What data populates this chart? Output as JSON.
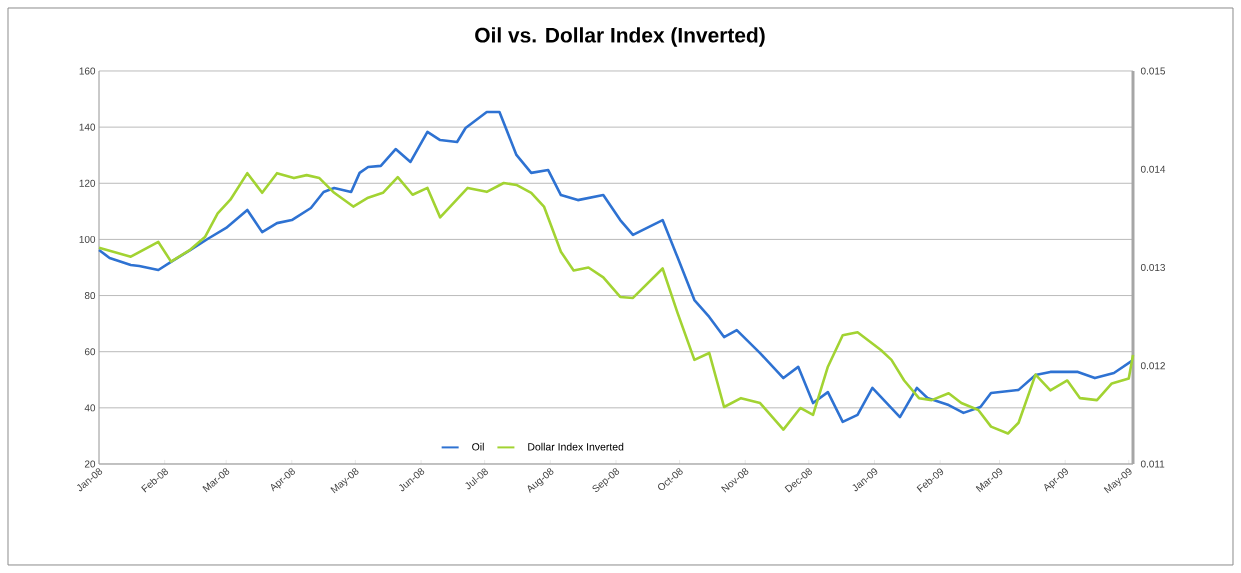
{
  "chart_data": {
    "type": "line",
    "title": "Oil vs. Dollar Index (Inverted)",
    "xlim": [
      "2008-01-01",
      "2009-05-03"
    ],
    "xticks": [
      {
        "value": "2008-01-01",
        "label": "Jan-08"
      },
      {
        "value": "2008-02-01",
        "label": "Feb-08"
      },
      {
        "value": "2008-03-01",
        "label": "Mar-08"
      },
      {
        "value": "2008-04-01",
        "label": "Apr-08"
      },
      {
        "value": "2008-05-01",
        "label": "May-08"
      },
      {
        "value": "2008-06-01",
        "label": "Jun-08"
      },
      {
        "value": "2008-07-01",
        "label": "Jul-08"
      },
      {
        "value": "2008-08-01",
        "label": "Aug-08"
      },
      {
        "value": "2008-09-01",
        "label": "Sep-08"
      },
      {
        "value": "2008-10-01",
        "label": "Oct-08"
      },
      {
        "value": "2008-11-01",
        "label": "Nov-08"
      },
      {
        "value": "2008-12-01",
        "label": "Dec-08"
      },
      {
        "value": "2009-01-01",
        "label": "Jan-09"
      },
      {
        "value": "2009-02-01",
        "label": "Feb-09"
      },
      {
        "value": "2009-03-01",
        "label": "Mar-09"
      },
      {
        "value": "2009-04-01",
        "label": "Apr-09"
      },
      {
        "value": "2009-05-01",
        "label": "May-09"
      }
    ],
    "ylim": [
      20,
      160
    ],
    "yticks": [
      20,
      40,
      60,
      80,
      100,
      120,
      140,
      160
    ],
    "y2lim": [
      0.011,
      0.015
    ],
    "y2ticks": [
      0.011,
      0.012,
      0.013,
      0.014,
      0.015
    ],
    "grid": "y",
    "legend": "bottom",
    "series": [
      {
        "name": "Oil",
        "color": "#2e72d2",
        "x": [
          "2008-01-01",
          "2008-01-06",
          "2008-01-16",
          "2008-01-20",
          "2008-01-29",
          "2008-02-04",
          "2008-02-13",
          "2008-02-22",
          "2008-03-01",
          "2008-03-11",
          "2008-03-18",
          "2008-03-25",
          "2008-04-01",
          "2008-04-10",
          "2008-04-16",
          "2008-04-21",
          "2008-04-29",
          "2008-05-03",
          "2008-05-07",
          "2008-05-13",
          "2008-05-20",
          "2008-05-27",
          "2008-06-04",
          "2008-06-10",
          "2008-06-18",
          "2008-06-22",
          "2008-07-02",
          "2008-07-08",
          "2008-07-16",
          "2008-07-23",
          "2008-07-31",
          "2008-08-06",
          "2008-08-14",
          "2008-08-26",
          "2008-09-03",
          "2008-09-09",
          "2008-09-23",
          "2008-09-30",
          "2008-10-08",
          "2008-10-15",
          "2008-10-22",
          "2008-10-28",
          "2008-11-08",
          "2008-11-19",
          "2008-11-26",
          "2008-12-03",
          "2008-12-10",
          "2008-12-17",
          "2008-12-24",
          "2008-12-31",
          "2009-01-04",
          "2009-01-13",
          "2009-01-21",
          "2009-01-26",
          "2009-02-05",
          "2009-02-12",
          "2009-02-20",
          "2009-02-25",
          "2009-03-10",
          "2009-03-18",
          "2009-03-25",
          "2009-04-07",
          "2009-04-15",
          "2009-04-24",
          "2009-05-03"
        ],
        "values": [
          96.2,
          93.4,
          90.9,
          90.5,
          89.1,
          92,
          96.2,
          100.5,
          104.1,
          110.5,
          102.6,
          105.8,
          106.9,
          111.2,
          116.9,
          118.3,
          116.9,
          123.7,
          125.8,
          126.2,
          132.2,
          127.6,
          138.3,
          135.4,
          134.7,
          139.7,
          145.4,
          145.4,
          130.1,
          123.7,
          124.7,
          115.8,
          114,
          115.8,
          106.9,
          101.6,
          106.9,
          93.7,
          78.4,
          72.4,
          65.2,
          67.7,
          59.5,
          50.6,
          54.6,
          41.7,
          45.6,
          35,
          37.5,
          47.1,
          43.9,
          36.7,
          47.1,
          43.5,
          41,
          38.2,
          40.3,
          45.3,
          46.4,
          51.7,
          52.8,
          52.8,
          50.6,
          52.4,
          57
        ]
      },
      {
        "name": "Dollar Index Inverted",
        "color": "#a2d332",
        "axis": "y2",
        "x": [
          "2008-01-01",
          "2008-01-16",
          "2008-01-29",
          "2008-02-04",
          "2008-02-13",
          "2008-02-20",
          "2008-02-26",
          "2008-03-03",
          "2008-03-11",
          "2008-03-18",
          "2008-03-25",
          "2008-04-02",
          "2008-04-08",
          "2008-04-14",
          "2008-04-21",
          "2008-04-30",
          "2008-05-07",
          "2008-05-14",
          "2008-05-21",
          "2008-05-28",
          "2008-06-04",
          "2008-06-10",
          "2008-06-23",
          "2008-07-02",
          "2008-07-10",
          "2008-07-16",
          "2008-07-23",
          "2008-07-29",
          "2008-08-06",
          "2008-08-12",
          "2008-08-19",
          "2008-08-26",
          "2008-09-03",
          "2008-09-09",
          "2008-09-23",
          "2008-09-30",
          "2008-10-08",
          "2008-10-15",
          "2008-10-22",
          "2008-10-30",
          "2008-11-08",
          "2008-11-19",
          "2008-11-27",
          "2008-12-03",
          "2008-12-10",
          "2008-12-17",
          "2008-12-24",
          "2009-01-04",
          "2009-01-09",
          "2009-01-15",
          "2009-01-22",
          "2009-01-28",
          "2009-02-05",
          "2009-02-11",
          "2009-02-19",
          "2009-02-25",
          "2009-03-05",
          "2009-03-10",
          "2009-03-18",
          "2009-03-25",
          "2009-04-02",
          "2009-04-08",
          "2009-04-16",
          "2009-04-23",
          "2009-05-01",
          "2009-05-03"
        ],
        "values": [
          0.0132,
          0.01311,
          0.01326,
          0.01306,
          0.01318,
          0.01331,
          0.01355,
          0.01369,
          0.01396,
          0.01376,
          0.01396,
          0.01391,
          0.01394,
          0.01391,
          0.01376,
          0.01362,
          0.01371,
          0.01376,
          0.01392,
          0.01374,
          0.01381,
          0.01351,
          0.01381,
          0.01377,
          0.01386,
          0.01384,
          0.01376,
          0.01362,
          0.01316,
          0.01297,
          0.013,
          0.0129,
          0.0127,
          0.01269,
          0.01299,
          0.01254,
          0.01206,
          0.01213,
          0.01158,
          0.01167,
          0.01162,
          0.01135,
          0.01157,
          0.0115,
          0.01199,
          0.01231,
          0.01234,
          0.01216,
          0.01206,
          0.01185,
          0.01167,
          0.01165,
          0.01172,
          0.01162,
          0.01155,
          0.01138,
          0.01131,
          0.01142,
          0.01191,
          0.01175,
          0.01185,
          0.01167,
          0.01165,
          0.01182,
          0.01187,
          0.01211
        ]
      }
    ]
  }
}
